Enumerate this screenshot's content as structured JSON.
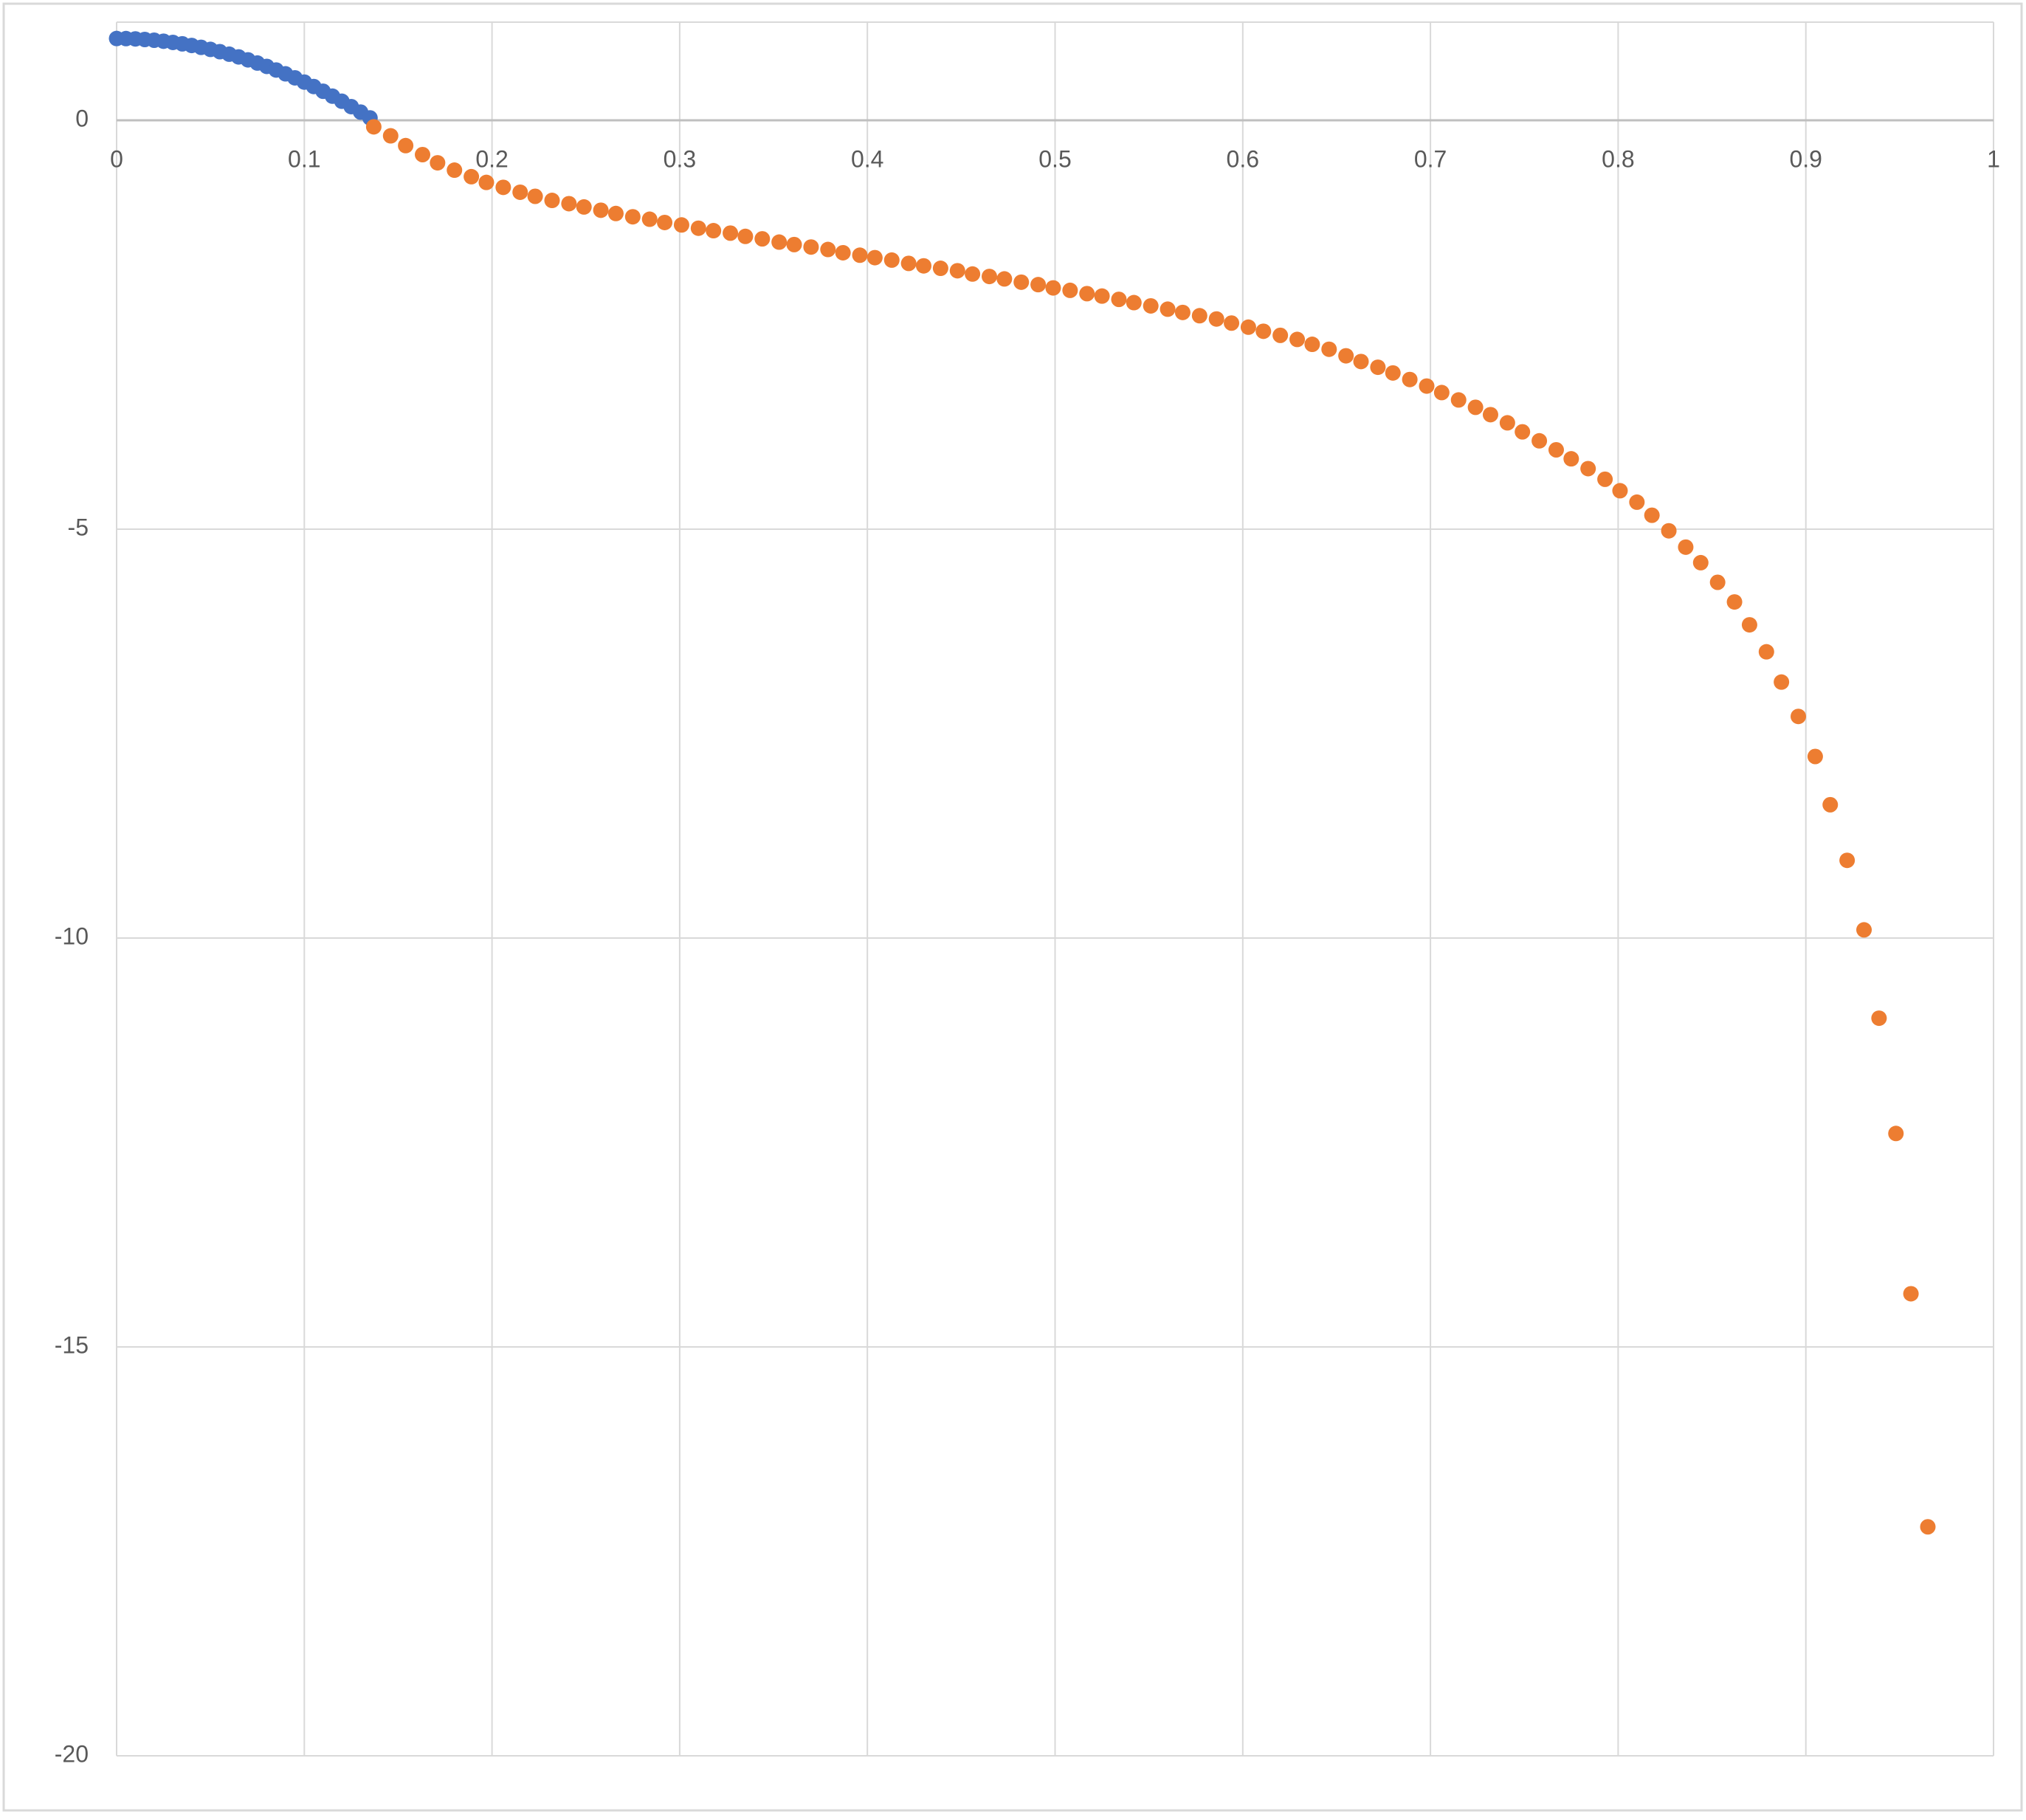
{
  "chart_data": {
    "type": "scatter",
    "xlim": [
      0,
      1
    ],
    "xticks": [
      0,
      0.1,
      0.2,
      0.3,
      0.4,
      0.5,
      0.6,
      0.7,
      0.8,
      0.9,
      1
    ],
    "ylim": [
      -20,
      1.2
    ],
    "yticks": [
      -20,
      -15,
      -10,
      -5,
      0
    ],
    "grid": true,
    "series": [
      {
        "color": "#4472c4",
        "x": [
          0,
          0.005,
          0.01,
          0.015,
          0.02,
          0.025,
          0.03,
          0.035,
          0.04,
          0.045,
          0.05,
          0.055,
          0.06,
          0.065,
          0.07,
          0.075,
          0.08,
          0.085,
          0.09,
          0.095,
          0.1,
          0.105,
          0.11,
          0.115,
          0.12,
          0.125,
          0.13,
          0.135
        ],
        "values": [
          1,
          0.999,
          0.995,
          0.988,
          0.979,
          0.967,
          0.952,
          0.935,
          0.915,
          0.892,
          0.867,
          0.839,
          0.808,
          0.775,
          0.739,
          0.7,
          0.659,
          0.615,
          0.568,
          0.519,
          0.467,
          0.413,
          0.355,
          0.295,
          0.233,
          0.167,
          0.1,
          0.029
        ]
      },
      {
        "color": "#ed7d31",
        "x": [
          0.137,
          0.146,
          0.154,
          0.163,
          0.171,
          0.18,
          0.189,
          0.197,
          0.206,
          0.215,
          0.223,
          0.232,
          0.241,
          0.249,
          0.258,
          0.266,
          0.275,
          0.284,
          0.292,
          0.301,
          0.31,
          0.318,
          0.327,
          0.335,
          0.344,
          0.353,
          0.361,
          0.37,
          0.379,
          0.387,
          0.396,
          0.404,
          0.413,
          0.422,
          0.43,
          0.439,
          0.448,
          0.456,
          0.465,
          0.473,
          0.482,
          0.491,
          0.499,
          0.508,
          0.517,
          0.525,
          0.534,
          0.542,
          0.551,
          0.56,
          0.568,
          0.577,
          0.586,
          0.594,
          0.603,
          0.611,
          0.62,
          0.629,
          0.637,
          0.646,
          0.655,
          0.663,
          0.672,
          0.68,
          0.689,
          0.698,
          0.706,
          0.715,
          0.724,
          0.732,
          0.741,
          0.749,
          0.758,
          0.767,
          0.775,
          0.784,
          0.793,
          0.801,
          0.81,
          0.818,
          0.827,
          0.836,
          0.844,
          0.853,
          0.862,
          0.87,
          0.879,
          0.887,
          0.896,
          0.905,
          0.913,
          0.922,
          0.931,
          0.939,
          0.948,
          0.956,
          0.965
        ],
        "values": [
          -0.08,
          -0.19,
          -0.31,
          -0.42,
          -0.52,
          -0.61,
          -0.69,
          -0.76,
          -0.82,
          -0.88,
          -0.93,
          -0.98,
          -1.02,
          -1.06,
          -1.1,
          -1.14,
          -1.18,
          -1.21,
          -1.25,
          -1.28,
          -1.32,
          -1.35,
          -1.38,
          -1.42,
          -1.45,
          -1.49,
          -1.52,
          -1.55,
          -1.58,
          -1.62,
          -1.65,
          -1.68,
          -1.71,
          -1.75,
          -1.78,
          -1.81,
          -1.84,
          -1.88,
          -1.91,
          -1.94,
          -1.98,
          -2.01,
          -2.05,
          -2.08,
          -2.12,
          -2.15,
          -2.19,
          -2.23,
          -2.27,
          -2.31,
          -2.35,
          -2.39,
          -2.43,
          -2.48,
          -2.53,
          -2.58,
          -2.63,
          -2.68,
          -2.74,
          -2.8,
          -2.88,
          -2.95,
          -3.02,
          -3.09,
          -3.17,
          -3.25,
          -3.33,
          -3.42,
          -3.51,
          -3.6,
          -3.7,
          -3.81,
          -3.92,
          -4.03,
          -4.14,
          -4.26,
          -4.39,
          -4.53,
          -4.67,
          -4.83,
          -5.02,
          -5.22,
          -5.41,
          -5.65,
          -5.89,
          -6.17,
          -6.5,
          -6.87,
          -7.29,
          -7.78,
          -8.37,
          -9.05,
          -9.9,
          -10.98,
          -12.39,
          -14.35,
          -17.2
        ]
      }
    ]
  }
}
